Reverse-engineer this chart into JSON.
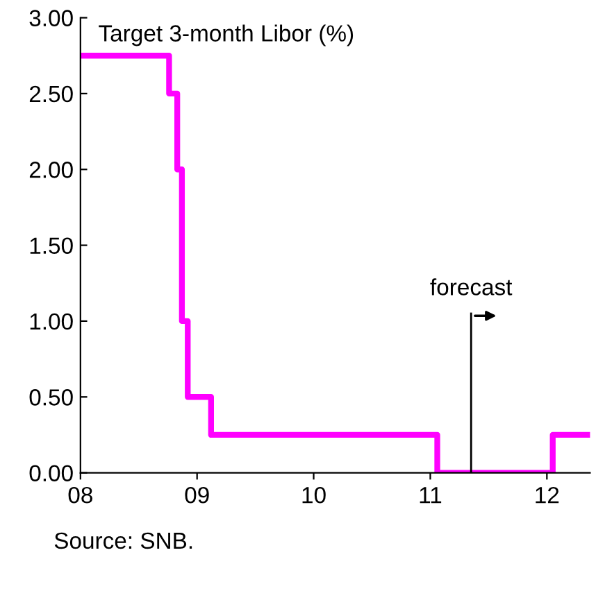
{
  "chart_data": {
    "type": "step",
    "title": "Target 3-month Libor (%)",
    "x": [
      2008.0,
      2008.76,
      2008.83,
      2008.87,
      2008.92,
      2009.12,
      2011.06,
      2012.05,
      2012.37
    ],
    "series": [
      {
        "color": "#ff00ff",
        "values": [
          2.75,
          2.5,
          2.0,
          1.0,
          0.5,
          0.25,
          0.0,
          0.25,
          0.25
        ]
      }
    ],
    "xlim": [
      2008.0,
      2012.37
    ],
    "xticks": [
      {
        "value": 2008,
        "label": "08"
      },
      {
        "value": 2009,
        "label": "09"
      },
      {
        "value": 2010,
        "label": "10"
      },
      {
        "value": 2011,
        "label": "11"
      },
      {
        "value": 2012,
        "label": "12"
      }
    ],
    "ylim": [
      0,
      3
    ],
    "yticks": [
      {
        "value": 0,
        "label": "0.00"
      },
      {
        "value": 0.5,
        "label": "0.50"
      },
      {
        "value": 1,
        "label": "1.00"
      },
      {
        "value": 1.5,
        "label": "1.50"
      },
      {
        "value": 2,
        "label": "2.00"
      },
      {
        "value": 2.5,
        "label": "2.50"
      },
      {
        "value": 3,
        "label": "3.00"
      }
    ],
    "ref_lines": [
      {
        "axis": "x",
        "value": 2011.35,
        "label": "forecast",
        "color": "#000000"
      }
    ],
    "annotations": [
      "Source: SNB."
    ],
    "grid": false,
    "legend": false
  }
}
